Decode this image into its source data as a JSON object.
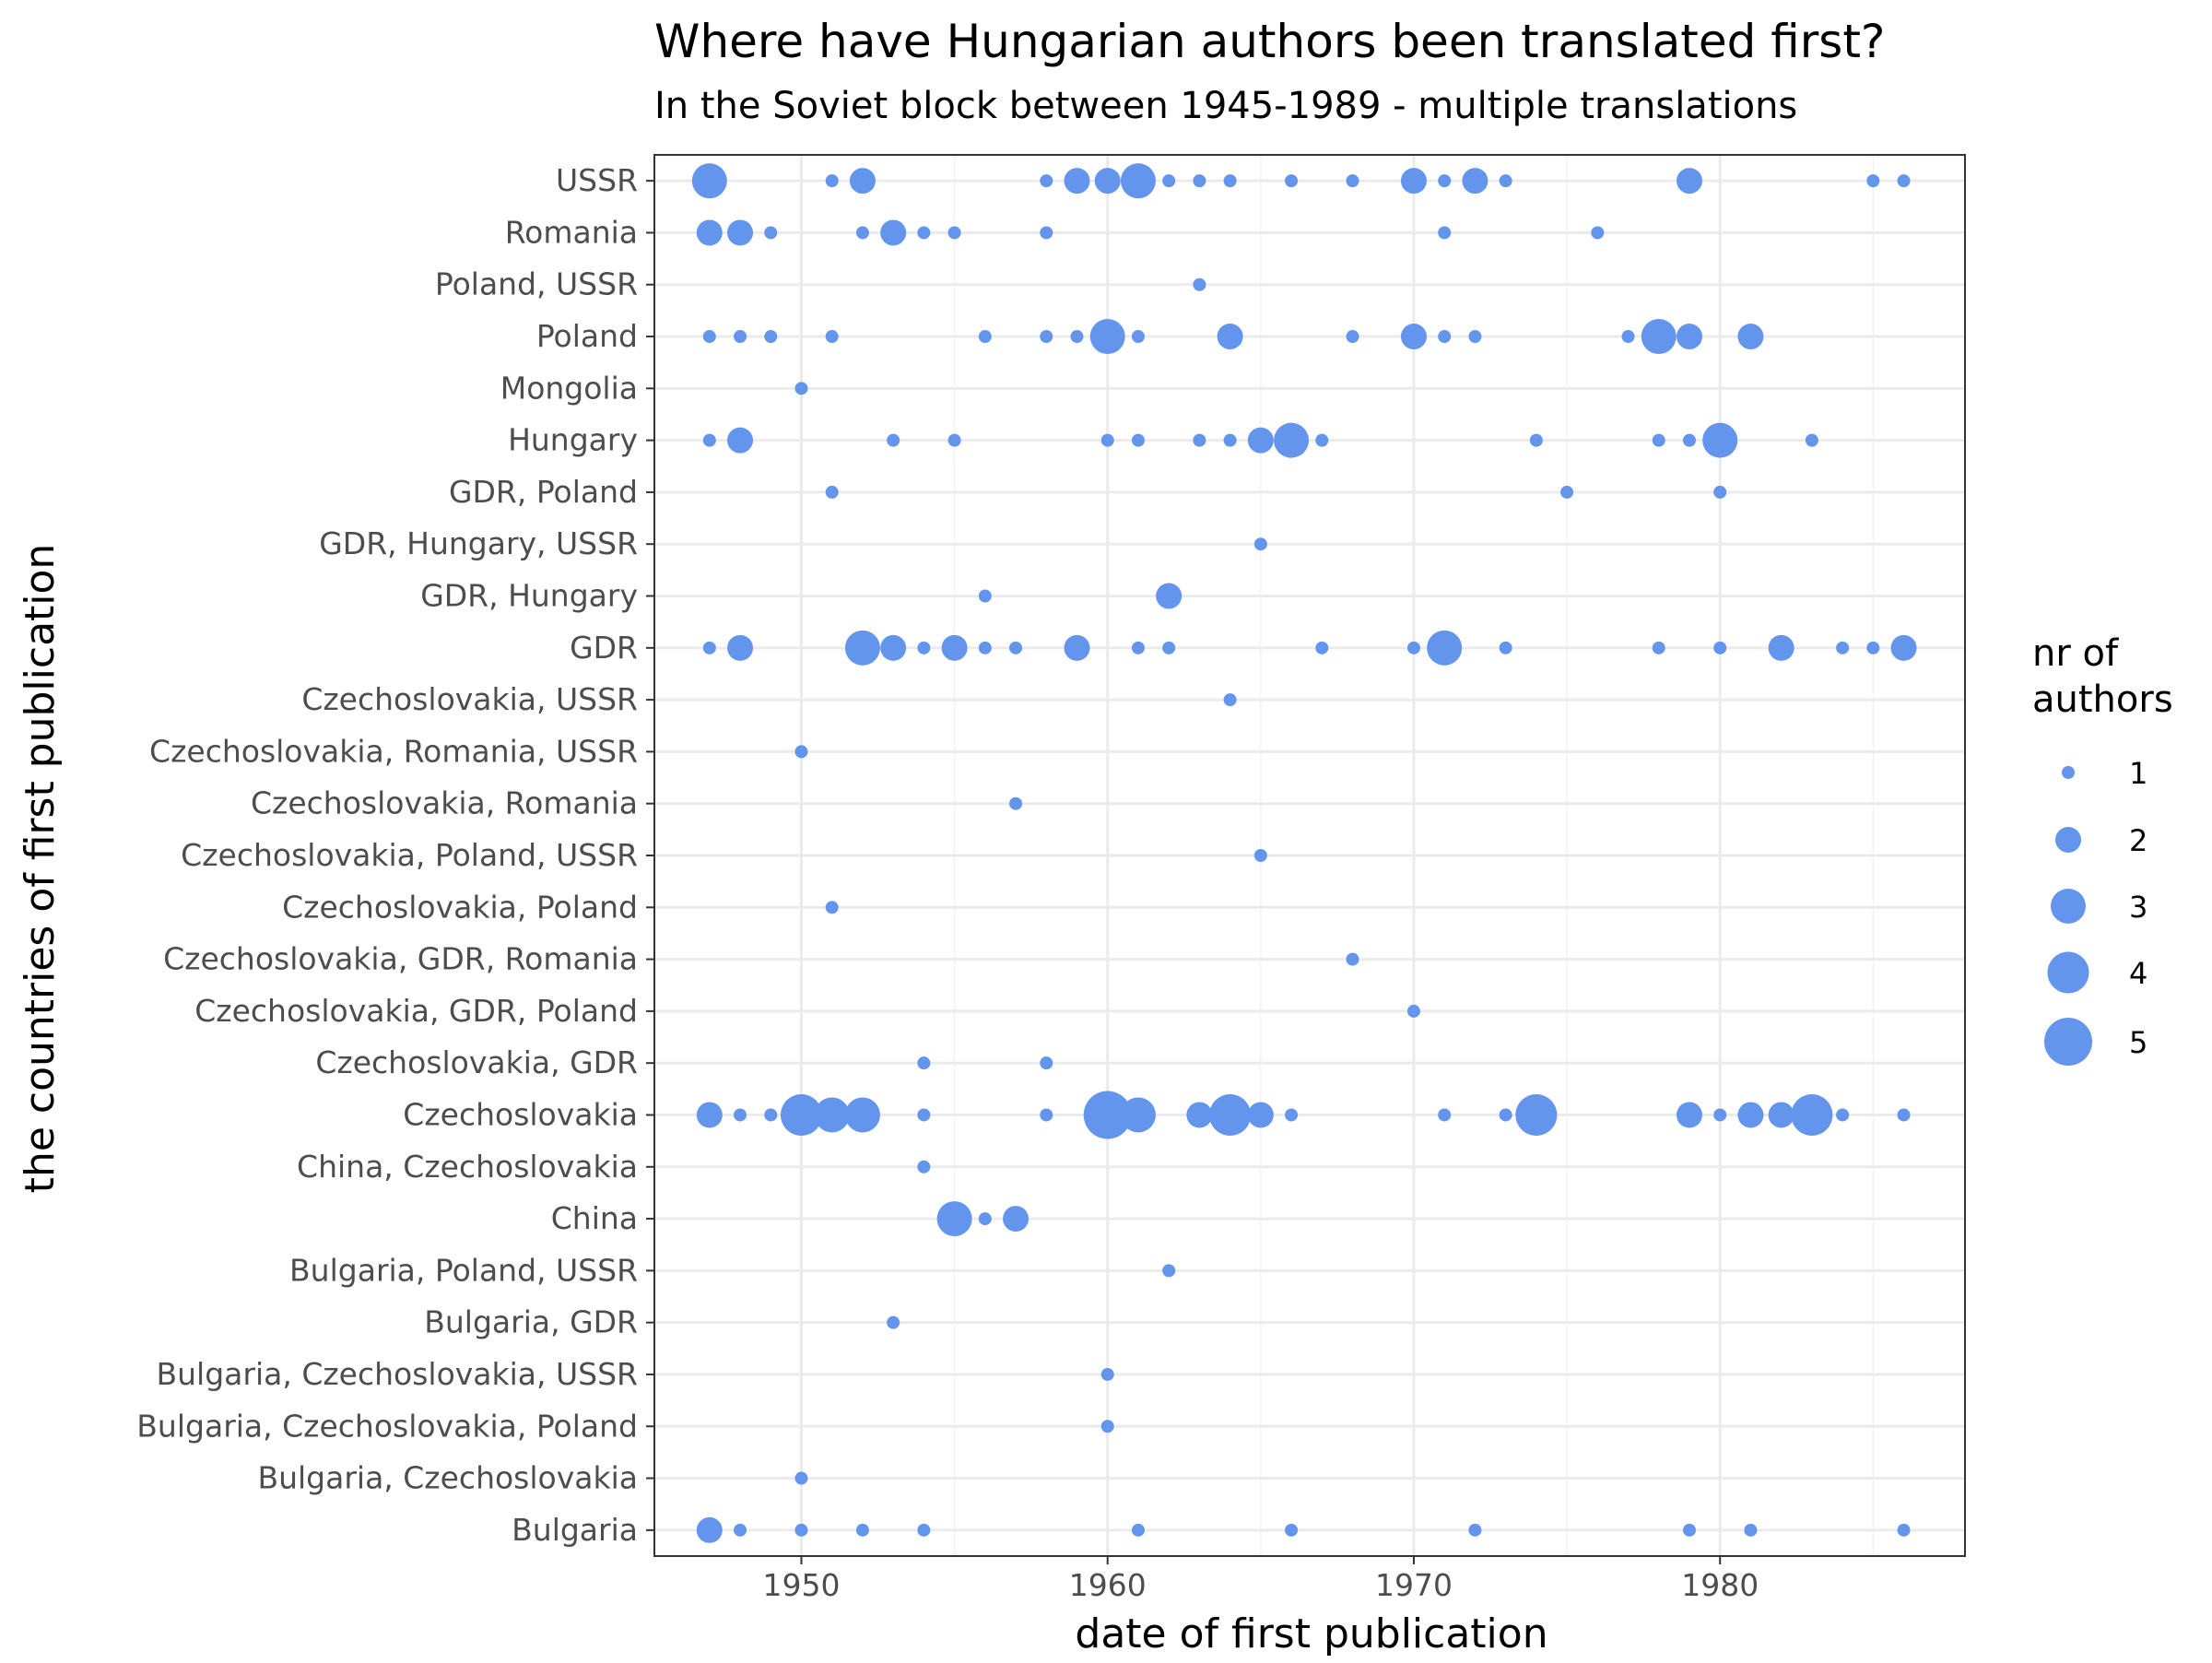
{
  "chart_data": {
    "type": "scatter",
    "title": "Where have Hungarian authors been translated first?",
    "subtitle": "In the Soviet block between 1945-1989 - multiple translations",
    "xlabel": "date of first publication",
    "ylabel": "the countries of first publication",
    "xlim": [
      1945.2,
      1988
    ],
    "xticks": [
      1950,
      1960,
      1970,
      1980
    ],
    "grid": true,
    "point_color": "#6495ED",
    "legend": {
      "title_line1": "nr of",
      "title_line2": "authors",
      "placement": "right",
      "entries": [
        1,
        2,
        3,
        4,
        5
      ]
    },
    "categories": [
      "Bulgaria",
      "Bulgaria, Czechoslovakia",
      "Bulgaria, Czechoslovakia, Poland",
      "Bulgaria, Czechoslovakia, USSR",
      "Bulgaria, GDR",
      "Bulgaria, Poland, USSR",
      "China",
      "China, Czechoslovakia",
      "Czechoslovakia",
      "Czechoslovakia, GDR",
      "Czechoslovakia, GDR, Poland",
      "Czechoslovakia, GDR, Romania",
      "Czechoslovakia, Poland",
      "Czechoslovakia, Poland, USSR",
      "Czechoslovakia, Romania",
      "Czechoslovakia, Romania, USSR",
      "Czechoslovakia, USSR",
      "GDR",
      "GDR, Hungary",
      "GDR, Hungary, USSR",
      "GDR, Poland",
      "Hungary",
      "Mongolia",
      "Poland",
      "Poland, USSR",
      "Romania",
      "USSR"
    ],
    "points": [
      {
        "y": "USSR",
        "x": 1947,
        "n": 3
      },
      {
        "y": "USSR",
        "x": 1951,
        "n": 1
      },
      {
        "y": "USSR",
        "x": 1952,
        "n": 2
      },
      {
        "y": "USSR",
        "x": 1958,
        "n": 1
      },
      {
        "y": "USSR",
        "x": 1959,
        "n": 2
      },
      {
        "y": "USSR",
        "x": 1960,
        "n": 2
      },
      {
        "y": "USSR",
        "x": 1961,
        "n": 3
      },
      {
        "y": "USSR",
        "x": 1962,
        "n": 1
      },
      {
        "y": "USSR",
        "x": 1963,
        "n": 1
      },
      {
        "y": "USSR",
        "x": 1964,
        "n": 1
      },
      {
        "y": "USSR",
        "x": 1966,
        "n": 1
      },
      {
        "y": "USSR",
        "x": 1968,
        "n": 1
      },
      {
        "y": "USSR",
        "x": 1970,
        "n": 2
      },
      {
        "y": "USSR",
        "x": 1971,
        "n": 1
      },
      {
        "y": "USSR",
        "x": 1972,
        "n": 2
      },
      {
        "y": "USSR",
        "x": 1973,
        "n": 1
      },
      {
        "y": "USSR",
        "x": 1979,
        "n": 2
      },
      {
        "y": "USSR",
        "x": 1985,
        "n": 1
      },
      {
        "y": "USSR",
        "x": 1986,
        "n": 1
      },
      {
        "y": "Romania",
        "x": 1947,
        "n": 2
      },
      {
        "y": "Romania",
        "x": 1948,
        "n": 2
      },
      {
        "y": "Romania",
        "x": 1949,
        "n": 1
      },
      {
        "y": "Romania",
        "x": 1952,
        "n": 1
      },
      {
        "y": "Romania",
        "x": 1953,
        "n": 2
      },
      {
        "y": "Romania",
        "x": 1954,
        "n": 1
      },
      {
        "y": "Romania",
        "x": 1955,
        "n": 1
      },
      {
        "y": "Romania",
        "x": 1958,
        "n": 1
      },
      {
        "y": "Romania",
        "x": 1971,
        "n": 1
      },
      {
        "y": "Romania",
        "x": 1976,
        "n": 1
      },
      {
        "y": "Poland, USSR",
        "x": 1963,
        "n": 1
      },
      {
        "y": "Poland",
        "x": 1947,
        "n": 1
      },
      {
        "y": "Poland",
        "x": 1948,
        "n": 1
      },
      {
        "y": "Poland",
        "x": 1949,
        "n": 1
      },
      {
        "y": "Poland",
        "x": 1951,
        "n": 1
      },
      {
        "y": "Poland",
        "x": 1956,
        "n": 1
      },
      {
        "y": "Poland",
        "x": 1958,
        "n": 1
      },
      {
        "y": "Poland",
        "x": 1959,
        "n": 1
      },
      {
        "y": "Poland",
        "x": 1960,
        "n": 3
      },
      {
        "y": "Poland",
        "x": 1961,
        "n": 1
      },
      {
        "y": "Poland",
        "x": 1964,
        "n": 2
      },
      {
        "y": "Poland",
        "x": 1968,
        "n": 1
      },
      {
        "y": "Poland",
        "x": 1970,
        "n": 2
      },
      {
        "y": "Poland",
        "x": 1971,
        "n": 1
      },
      {
        "y": "Poland",
        "x": 1972,
        "n": 1
      },
      {
        "y": "Poland",
        "x": 1977,
        "n": 1
      },
      {
        "y": "Poland",
        "x": 1978,
        "n": 3
      },
      {
        "y": "Poland",
        "x": 1979,
        "n": 2
      },
      {
        "y": "Poland",
        "x": 1981,
        "n": 2
      },
      {
        "y": "Mongolia",
        "x": 1950,
        "n": 1
      },
      {
        "y": "Hungary",
        "x": 1947,
        "n": 1
      },
      {
        "y": "Hungary",
        "x": 1948,
        "n": 2
      },
      {
        "y": "Hungary",
        "x": 1953,
        "n": 1
      },
      {
        "y": "Hungary",
        "x": 1955,
        "n": 1
      },
      {
        "y": "Hungary",
        "x": 1960,
        "n": 1
      },
      {
        "y": "Hungary",
        "x": 1961,
        "n": 1
      },
      {
        "y": "Hungary",
        "x": 1963,
        "n": 1
      },
      {
        "y": "Hungary",
        "x": 1964,
        "n": 1
      },
      {
        "y": "Hungary",
        "x": 1965,
        "n": 2
      },
      {
        "y": "Hungary",
        "x": 1966,
        "n": 3
      },
      {
        "y": "Hungary",
        "x": 1967,
        "n": 1
      },
      {
        "y": "Hungary",
        "x": 1974,
        "n": 1
      },
      {
        "y": "Hungary",
        "x": 1978,
        "n": 1
      },
      {
        "y": "Hungary",
        "x": 1979,
        "n": 1
      },
      {
        "y": "Hungary",
        "x": 1980,
        "n": 3
      },
      {
        "y": "Hungary",
        "x": 1983,
        "n": 1
      },
      {
        "y": "GDR, Poland",
        "x": 1951,
        "n": 1
      },
      {
        "y": "GDR, Poland",
        "x": 1975,
        "n": 1
      },
      {
        "y": "GDR, Poland",
        "x": 1980,
        "n": 1
      },
      {
        "y": "GDR, Hungary, USSR",
        "x": 1965,
        "n": 1
      },
      {
        "y": "GDR, Hungary",
        "x": 1956,
        "n": 1
      },
      {
        "y": "GDR, Hungary",
        "x": 1962,
        "n": 2
      },
      {
        "y": "GDR",
        "x": 1947,
        "n": 1
      },
      {
        "y": "GDR",
        "x": 1948,
        "n": 2
      },
      {
        "y": "GDR",
        "x": 1952,
        "n": 3
      },
      {
        "y": "GDR",
        "x": 1953,
        "n": 2
      },
      {
        "y": "GDR",
        "x": 1954,
        "n": 1
      },
      {
        "y": "GDR",
        "x": 1955,
        "n": 2
      },
      {
        "y": "GDR",
        "x": 1956,
        "n": 1
      },
      {
        "y": "GDR",
        "x": 1957,
        "n": 1
      },
      {
        "y": "GDR",
        "x": 1959,
        "n": 2
      },
      {
        "y": "GDR",
        "x": 1961,
        "n": 1
      },
      {
        "y": "GDR",
        "x": 1962,
        "n": 1
      },
      {
        "y": "GDR",
        "x": 1967,
        "n": 1
      },
      {
        "y": "GDR",
        "x": 1970,
        "n": 1
      },
      {
        "y": "GDR",
        "x": 1971,
        "n": 3
      },
      {
        "y": "GDR",
        "x": 1973,
        "n": 1
      },
      {
        "y": "GDR",
        "x": 1978,
        "n": 1
      },
      {
        "y": "GDR",
        "x": 1980,
        "n": 1
      },
      {
        "y": "GDR",
        "x": 1982,
        "n": 2
      },
      {
        "y": "GDR",
        "x": 1984,
        "n": 1
      },
      {
        "y": "GDR",
        "x": 1985,
        "n": 1
      },
      {
        "y": "GDR",
        "x": 1986,
        "n": 2
      },
      {
        "y": "Czechoslovakia, USSR",
        "x": 1964,
        "n": 1
      },
      {
        "y": "Czechoslovakia, Romania, USSR",
        "x": 1950,
        "n": 1
      },
      {
        "y": "Czechoslovakia, Romania",
        "x": 1957,
        "n": 1
      },
      {
        "y": "Czechoslovakia, Poland, USSR",
        "x": 1965,
        "n": 1
      },
      {
        "y": "Czechoslovakia, Poland",
        "x": 1951,
        "n": 1
      },
      {
        "y": "Czechoslovakia, GDR, Romania",
        "x": 1968,
        "n": 1
      },
      {
        "y": "Czechoslovakia, GDR, Poland",
        "x": 1970,
        "n": 1
      },
      {
        "y": "Czechoslovakia, GDR",
        "x": 1954,
        "n": 1
      },
      {
        "y": "Czechoslovakia, GDR",
        "x": 1958,
        "n": 1
      },
      {
        "y": "Czechoslovakia",
        "x": 1947,
        "n": 2
      },
      {
        "y": "Czechoslovakia",
        "x": 1948,
        "n": 1
      },
      {
        "y": "Czechoslovakia",
        "x": 1949,
        "n": 1
      },
      {
        "y": "Czechoslovakia",
        "x": 1950,
        "n": 4
      },
      {
        "y": "Czechoslovakia",
        "x": 1951,
        "n": 3
      },
      {
        "y": "Czechoslovakia",
        "x": 1952,
        "n": 3
      },
      {
        "y": "Czechoslovakia",
        "x": 1954,
        "n": 1
      },
      {
        "y": "Czechoslovakia",
        "x": 1958,
        "n": 1
      },
      {
        "y": "Czechoslovakia",
        "x": 1960,
        "n": 5
      },
      {
        "y": "Czechoslovakia",
        "x": 1961,
        "n": 3
      },
      {
        "y": "Czechoslovakia",
        "x": 1963,
        "n": 2
      },
      {
        "y": "Czechoslovakia",
        "x": 1964,
        "n": 4
      },
      {
        "y": "Czechoslovakia",
        "x": 1965,
        "n": 2
      },
      {
        "y": "Czechoslovakia",
        "x": 1966,
        "n": 1
      },
      {
        "y": "Czechoslovakia",
        "x": 1971,
        "n": 1
      },
      {
        "y": "Czechoslovakia",
        "x": 1973,
        "n": 1
      },
      {
        "y": "Czechoslovakia",
        "x": 1974,
        "n": 4
      },
      {
        "y": "Czechoslovakia",
        "x": 1979,
        "n": 2
      },
      {
        "y": "Czechoslovakia",
        "x": 1980,
        "n": 1
      },
      {
        "y": "Czechoslovakia",
        "x": 1981,
        "n": 2
      },
      {
        "y": "Czechoslovakia",
        "x": 1982,
        "n": 2
      },
      {
        "y": "Czechoslovakia",
        "x": 1983,
        "n": 4
      },
      {
        "y": "Czechoslovakia",
        "x": 1984,
        "n": 1
      },
      {
        "y": "Czechoslovakia",
        "x": 1986,
        "n": 1
      },
      {
        "y": "China, Czechoslovakia",
        "x": 1954,
        "n": 1
      },
      {
        "y": "China",
        "x": 1955,
        "n": 3
      },
      {
        "y": "China",
        "x": 1956,
        "n": 1
      },
      {
        "y": "China",
        "x": 1957,
        "n": 2
      },
      {
        "y": "Bulgaria, Poland, USSR",
        "x": 1962,
        "n": 1
      },
      {
        "y": "Bulgaria, GDR",
        "x": 1953,
        "n": 1
      },
      {
        "y": "Bulgaria, Czechoslovakia, USSR",
        "x": 1960,
        "n": 1
      },
      {
        "y": "Bulgaria, Czechoslovakia, Poland",
        "x": 1960,
        "n": 1
      },
      {
        "y": "Bulgaria, Czechoslovakia",
        "x": 1950,
        "n": 1
      },
      {
        "y": "Bulgaria",
        "x": 1947,
        "n": 2
      },
      {
        "y": "Bulgaria",
        "x": 1948,
        "n": 1
      },
      {
        "y": "Bulgaria",
        "x": 1950,
        "n": 1
      },
      {
        "y": "Bulgaria",
        "x": 1952,
        "n": 1
      },
      {
        "y": "Bulgaria",
        "x": 1954,
        "n": 1
      },
      {
        "y": "Bulgaria",
        "x": 1961,
        "n": 1
      },
      {
        "y": "Bulgaria",
        "x": 1966,
        "n": 1
      },
      {
        "y": "Bulgaria",
        "x": 1972,
        "n": 1
      },
      {
        "y": "Bulgaria",
        "x": 1979,
        "n": 1
      },
      {
        "y": "Bulgaria",
        "x": 1981,
        "n": 1
      },
      {
        "y": "Bulgaria",
        "x": 1986,
        "n": 1
      }
    ]
  }
}
